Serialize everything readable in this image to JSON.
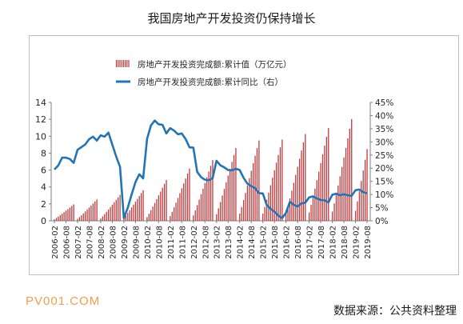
{
  "title": "我国房地产开发投资仍保持增长",
  "watermark": "PV001.COM",
  "source": "数据来源：公共资料整理",
  "colors": {
    "bar": "#c0393b",
    "line": "#2374b5",
    "axis": "#7f7f7f",
    "grid": "#d9d9d9"
  },
  "chart_data": {
    "type": "bar+line",
    "legend": [
      {
        "label": "房地产开发投资完成额:累计值（万亿元）",
        "kind": "bar",
        "color": "#c0393b"
      },
      {
        "label": "房地产开发投资完成额:累计同比（右）",
        "kind": "line",
        "color": "#2374b5"
      }
    ],
    "left_axis": {
      "min": 0,
      "max": 14,
      "ticks": [
        "0",
        "2",
        "4",
        "6",
        "8",
        "10",
        "12",
        "14"
      ]
    },
    "right_axis": {
      "min": 0,
      "max": 45,
      "ticks": [
        "0%",
        "5%",
        "10%",
        "15%",
        "20%",
        "25%",
        "30%",
        "35%",
        "40%",
        "45%"
      ]
    },
    "x_tick_labels": [
      "2006-02",
      "2006-08",
      "2007-02",
      "2007-08",
      "2008-02",
      "2008-08",
      "2009-02",
      "2009-08",
      "2010-02",
      "2010-08",
      "2011-02",
      "2011-08",
      "2012-02",
      "2012-08",
      "2013-02",
      "2013-08",
      "2014-02",
      "2014-08",
      "2015-02",
      "2015-08",
      "2016-02",
      "2016-08",
      "2017-02",
      "2017-08",
      "2018-02",
      "2018-08",
      "2019-02",
      "2019-08"
    ],
    "annual_cumulative_dec": {
      "2006": 1.94,
      "2007": 2.53,
      "2008": 3.06,
      "2009": 3.62,
      "2010": 4.83,
      "2011": 6.17,
      "2012": 7.18,
      "2013": 8.6,
      "2014": 9.5,
      "2015": 9.6,
      "2016": 10.26,
      "2017": 10.98,
      "2018": 12.03,
      "2019_aug": 8.48
    },
    "yoy_series": {
      "x": [
        "2006-02",
        "2006-04",
        "2006-06",
        "2006-08",
        "2006-10",
        "2006-12",
        "2007-02",
        "2007-04",
        "2007-06",
        "2007-08",
        "2007-10",
        "2007-12",
        "2008-02",
        "2008-04",
        "2008-06",
        "2008-08",
        "2008-10",
        "2008-12",
        "2009-02",
        "2009-04",
        "2009-06",
        "2009-08",
        "2009-10",
        "2009-12",
        "2010-02",
        "2010-04",
        "2010-06",
        "2010-08",
        "2010-10",
        "2010-12",
        "2011-02",
        "2011-04",
        "2011-06",
        "2011-08",
        "2011-10",
        "2011-12",
        "2012-02",
        "2012-04",
        "2012-06",
        "2012-08",
        "2012-10",
        "2012-12",
        "2013-02",
        "2013-04",
        "2013-06",
        "2013-08",
        "2013-10",
        "2013-12",
        "2014-02",
        "2014-04",
        "2014-06",
        "2014-08",
        "2014-10",
        "2014-12",
        "2015-02",
        "2015-04",
        "2015-06",
        "2015-08",
        "2015-10",
        "2015-12",
        "2016-02",
        "2016-04",
        "2016-06",
        "2016-08",
        "2016-10",
        "2016-12",
        "2017-02",
        "2017-04",
        "2017-06",
        "2017-08",
        "2017-10",
        "2017-12",
        "2018-02",
        "2018-04",
        "2018-06",
        "2018-08",
        "2018-10",
        "2018-12",
        "2019-02",
        "2019-04",
        "2019-06",
        "2019-08"
      ],
      "values": [
        19.5,
        21,
        24,
        24,
        23.5,
        22,
        27,
        28,
        29,
        31,
        32,
        30.5,
        32.5,
        32,
        33.5,
        29,
        24.5,
        20.5,
        1,
        4.9,
        9.9,
        14.7,
        17.7,
        16.1,
        31.1,
        36.2,
        38.1,
        36.7,
        36.5,
        33.2,
        35.2,
        34.3,
        32.9,
        33.2,
        31.1,
        27.9,
        27.8,
        18.6,
        16.6,
        15.6,
        15.4,
        16.2,
        22.8,
        21.1,
        20.3,
        19.3,
        19.2,
        19.8,
        19.3,
        16.4,
        14.1,
        13.2,
        12.4,
        10.5,
        10.4,
        6,
        4.6,
        3.5,
        2,
        1,
        3,
        7.2,
        6.1,
        5.4,
        6.6,
        6.9,
        8.9,
        9.3,
        8.5,
        7.9,
        7.8,
        7,
        9.9,
        10.3,
        9.7,
        10.1,
        9.7,
        9.5,
        11.6,
        11.9,
        10.9,
        10.5
      ]
    }
  }
}
